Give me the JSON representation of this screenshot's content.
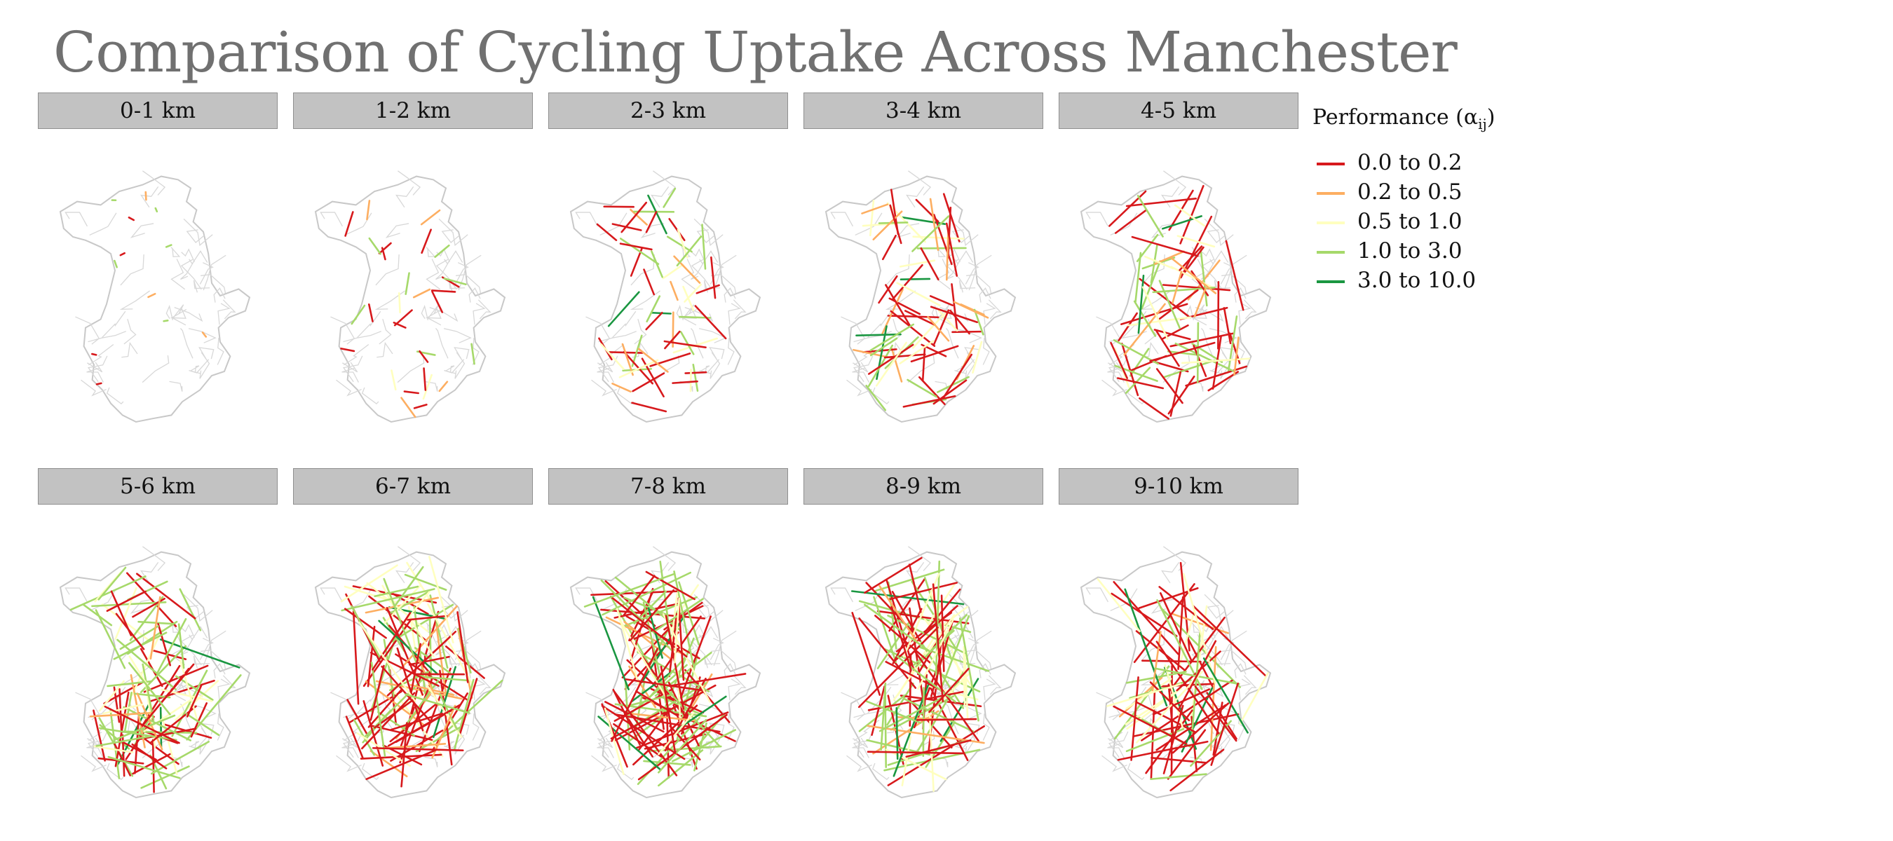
{
  "title": "Comparison of Cycling Uptake Across Manchester",
  "legend": {
    "title_main": "Performance (α",
    "title_sub": "ij",
    "title_close": ")",
    "items": [
      {
        "label": "0.0 to 0.2",
        "color": "#d7191c"
      },
      {
        "label": "0.2 to 0.5",
        "color": "#fdae61"
      },
      {
        "label": "0.5 to 1.0",
        "color": "#ffffbf"
      },
      {
        "label": "1.0 to 3.0",
        "color": "#a6d96a"
      },
      {
        "label": "3.0 to 10.0",
        "color": "#1a9641"
      }
    ]
  },
  "panels": [
    {
      "label": "0-1 km",
      "flows": 12
    },
    {
      "label": "1-2 km",
      "flows": 30
    },
    {
      "label": "2-3 km",
      "flows": 55
    },
    {
      "label": "3-4 km",
      "flows": 70
    },
    {
      "label": "4-5 km",
      "flows": 75
    },
    {
      "label": "5-6 km",
      "flows": 95
    },
    {
      "label": "6-7 km",
      "flows": 110
    },
    {
      "label": "7-8 km",
      "flows": 110
    },
    {
      "label": "8-9 km",
      "flows": 95
    },
    {
      "label": "9-10 km",
      "flows": 70
    }
  ],
  "base_map_color": "#c8c8c8"
}
